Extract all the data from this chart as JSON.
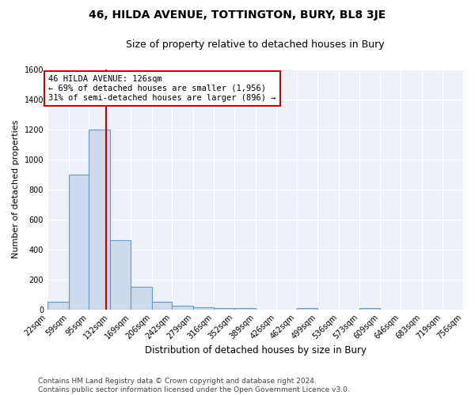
{
  "title": "46, HILDA AVENUE, TOTTINGTON, BURY, BL8 3JE",
  "subtitle": "Size of property relative to detached houses in Bury",
  "xlabel": "Distribution of detached houses by size in Bury",
  "ylabel": "Number of detached properties",
  "footer": "Contains HM Land Registry data © Crown copyright and database right 2024.\nContains public sector information licensed under the Open Government Licence v3.0.",
  "bin_edges": [
    22,
    59,
    95,
    132,
    169,
    206,
    242,
    279,
    316,
    352,
    389,
    426,
    462,
    499,
    536,
    573,
    609,
    646,
    683,
    719,
    756
  ],
  "bar_values": [
    50,
    900,
    1200,
    460,
    150,
    50,
    25,
    15,
    10,
    10,
    0,
    0,
    10,
    0,
    0,
    10,
    0,
    0,
    0,
    0
  ],
  "bar_color": "#ccdaec",
  "bar_edge_color": "#6699cc",
  "property_size": 126,
  "red_line_color": "#cc0000",
  "annotation_line1": "46 HILDA AVENUE: 126sqm",
  "annotation_line2": "← 69% of detached houses are smaller (1,956)",
  "annotation_line3": "31% of semi-detached houses are larger (896) →",
  "annotation_box_color": "white",
  "annotation_box_edge_color": "#cc0000",
  "ylim": [
    0,
    1600
  ],
  "yticks": [
    0,
    200,
    400,
    600,
    800,
    1000,
    1200,
    1400,
    1600
  ],
  "bg_color": "#eef2f8",
  "grid_color": "white",
  "title_fontsize": 10,
  "subtitle_fontsize": 9,
  "axis_label_fontsize": 8,
  "tick_fontsize": 7,
  "footer_fontsize": 6.5,
  "annotation_fontsize": 7.5
}
